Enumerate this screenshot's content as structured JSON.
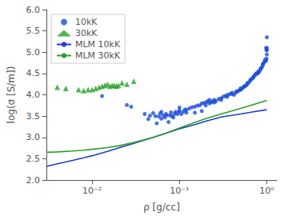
{
  "chart_data": {
    "type": "scatter",
    "xlabel": "ρ [g/cc]",
    "ylabel": "log(σ [S/m])",
    "log": "x",
    "xlim": [
      0.003,
      1.3
    ],
    "ylim": [
      2.0,
      6.0
    ],
    "xticks": [
      {
        "value": 0.01,
        "label": "10⁻²"
      },
      {
        "value": 0.1,
        "label": "10⁻¹"
      },
      {
        "value": 1,
        "label": "10⁰"
      }
    ],
    "yticks": [
      {
        "value": 2.0,
        "label": "2.0"
      },
      2.5,
      {
        "value": 3.0,
        "label": "3.0"
      },
      3.5,
      {
        "value": 4.0,
        "label": "4.0"
      },
      4.5,
      {
        "value": 5.0,
        "label": "5.0"
      },
      5.5,
      {
        "value": 6.0,
        "label": "6.0"
      }
    ],
    "grid": false,
    "legend": "upper left",
    "series": [
      {
        "name": "10kK",
        "type": "scatter",
        "marker": "circle",
        "color": "#1a4fd6",
        "x": [
          0.013,
          0.025,
          0.028,
          0.04,
          0.044,
          0.046,
          0.05,
          0.053,
          0.055,
          0.058,
          0.06,
          0.062,
          0.065,
          0.068,
          0.07,
          0.072,
          0.075,
          0.078,
          0.08,
          0.082,
          0.085,
          0.088,
          0.09,
          0.095,
          0.098,
          0.1,
          0.105,
          0.11,
          0.115,
          0.12,
          0.13,
          0.14,
          0.15,
          0.16,
          0.17,
          0.18,
          0.19,
          0.2,
          0.21,
          0.22,
          0.23,
          0.24,
          0.25,
          0.26,
          0.28,
          0.3,
          0.32,
          0.34,
          0.36,
          0.38,
          0.4,
          0.42,
          0.44,
          0.46,
          0.48,
          0.5,
          0.52,
          0.54,
          0.56,
          0.58,
          0.6,
          0.63,
          0.65,
          0.68,
          0.7,
          0.72,
          0.75,
          0.78,
          0.8,
          0.82,
          0.85,
          0.88,
          0.9,
          0.92,
          0.95,
          0.98,
          0.99,
          1.0,
          1.0,
          1.0,
          1.0,
          0.99,
          0.98,
          0.062,
          0.1,
          0.12,
          0.15,
          0.18,
          0.2,
          0.22,
          0.25,
          0.3,
          0.35,
          0.4,
          0.45,
          0.5,
          0.55,
          0.6,
          0.65,
          0.7,
          0.75,
          0.8,
          0.85,
          0.9,
          0.95
        ],
        "values": [
          3.97,
          3.76,
          3.72,
          3.55,
          3.43,
          3.51,
          3.57,
          3.5,
          3.33,
          3.49,
          3.56,
          3.44,
          3.52,
          3.47,
          3.55,
          3.52,
          3.36,
          3.52,
          3.59,
          3.5,
          3.47,
          3.55,
          3.6,
          3.55,
          3.6,
          3.63,
          3.55,
          3.6,
          3.65,
          3.58,
          3.68,
          3.71,
          3.72,
          3.75,
          3.75,
          3.8,
          3.8,
          3.82,
          3.85,
          3.88,
          3.82,
          3.85,
          3.88,
          3.85,
          3.9,
          3.92,
          3.96,
          3.98,
          4.0,
          4.02,
          4.05,
          4.0,
          4.05,
          4.08,
          4.1,
          4.12,
          4.14,
          4.18,
          4.2,
          4.22,
          4.25,
          4.3,
          4.35,
          4.38,
          4.4,
          4.45,
          4.48,
          4.5,
          4.52,
          4.55,
          4.6,
          4.65,
          4.7,
          4.75,
          4.78,
          4.8,
          4.85,
          4.95,
          5.05,
          5.1,
          5.35,
          5.05,
          5.1,
          3.6,
          3.7,
          3.65,
          3.58,
          3.62,
          3.75,
          3.8,
          3.82,
          3.88,
          3.95,
          4.02,
          4.08,
          4.15,
          4.2,
          4.28,
          4.35,
          4.42,
          4.5,
          4.55,
          4.62,
          4.72,
          4.82
        ]
      },
      {
        "name": "30kK",
        "type": "scatter",
        "marker": "triangle",
        "color": "#2ca02c",
        "x": [
          0.004,
          0.005,
          0.007,
          0.008,
          0.009,
          0.01,
          0.011,
          0.012,
          0.013,
          0.014,
          0.015,
          0.016,
          0.017,
          0.018,
          0.019,
          0.02,
          0.022,
          0.025,
          0.03
        ],
        "values": [
          4.18,
          4.15,
          4.12,
          4.1,
          4.12,
          4.12,
          4.15,
          4.18,
          4.2,
          4.22,
          4.25,
          4.2,
          4.22,
          4.22,
          4.2,
          4.22,
          4.28,
          4.25,
          4.32
        ]
      },
      {
        "name": "MLM 10kK",
        "type": "line",
        "line_style": "solid",
        "color": "#1f3fcc",
        "x": [
          0.003,
          0.004,
          0.006,
          0.008,
          0.01,
          0.015,
          0.02,
          0.03,
          0.05,
          0.07,
          0.1,
          0.15,
          0.2,
          0.3,
          0.5,
          0.7,
          1.0
        ],
        "values": [
          2.32,
          2.38,
          2.46,
          2.52,
          2.57,
          2.67,
          2.75,
          2.86,
          3.0,
          3.1,
          3.2,
          3.3,
          3.38,
          3.48,
          3.55,
          3.6,
          3.65
        ]
      },
      {
        "name": "MLM 30kK",
        "type": "line",
        "line_style": "solid",
        "color": "#2ca02c",
        "x": [
          0.003,
          0.004,
          0.006,
          0.008,
          0.01,
          0.015,
          0.02,
          0.03,
          0.05,
          0.07,
          0.1,
          0.15,
          0.2,
          0.3,
          0.5,
          0.7,
          1.0
        ],
        "values": [
          2.65,
          2.66,
          2.68,
          2.7,
          2.72,
          2.76,
          2.8,
          2.88,
          3.0,
          3.1,
          3.22,
          3.35,
          3.44,
          3.55,
          3.68,
          3.77,
          3.87
        ]
      }
    ]
  }
}
